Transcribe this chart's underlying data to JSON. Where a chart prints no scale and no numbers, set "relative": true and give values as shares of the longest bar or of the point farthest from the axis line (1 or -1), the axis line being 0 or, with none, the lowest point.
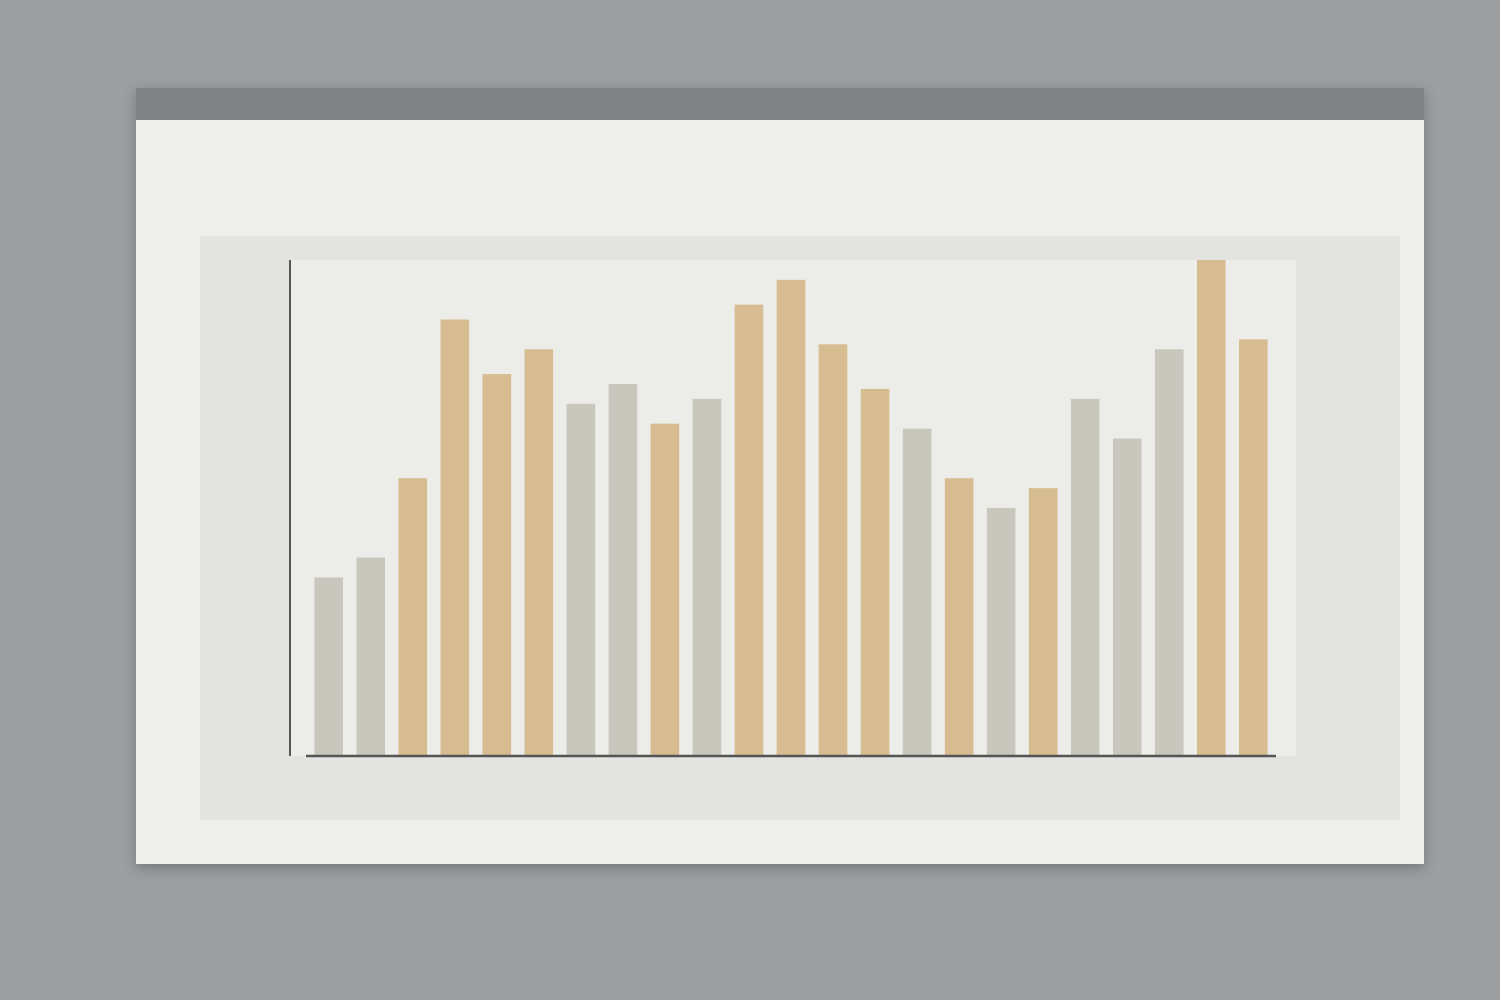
{
  "chart_data": {
    "type": "bar",
    "relative": true,
    "categories": [
      null,
      null,
      null,
      null,
      null,
      null,
      null,
      null,
      null,
      null,
      null,
      null,
      null,
      null,
      null,
      null,
      null,
      null,
      null,
      null,
      null,
      null,
      null
    ],
    "values": [
      0.36,
      0.4,
      0.56,
      0.88,
      0.77,
      0.82,
      0.71,
      0.75,
      0.67,
      0.72,
      0.91,
      0.96,
      0.83,
      0.74,
      0.66,
      0.56,
      0.5,
      0.54,
      0.72,
      0.64,
      0.82,
      1,
      0.84
    ],
    "colors": [
      "#c9c7bd",
      "#c9c7bd",
      "#d6bc90",
      "#d6bc90",
      "#d6bc90",
      "#d6bc90",
      "#c9c7bd",
      "#c9c7bd",
      "#d6bc90",
      "#c9c7bd",
      "#d6bc90",
      "#d6bc90",
      "#d6bc90",
      "#d6bc90",
      "#c9c7bd",
      "#d6bc90",
      "#c9c7bd",
      "#d6bc90",
      "#c9c7bd",
      "#c9c7bd",
      "#c9c7bd",
      "#d6bc90",
      "#d6bc90"
    ]
  }
}
